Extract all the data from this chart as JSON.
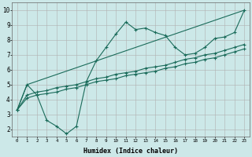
{
  "xlabel": "Humidex (Indice chaleur)",
  "bg_color": "#cce8e8",
  "grid_color": "#aaaaaa",
  "line_color": "#1a6b5a",
  "xlim": [
    -0.5,
    23.5
  ],
  "ylim": [
    1.5,
    10.5
  ],
  "xticks": [
    0,
    1,
    2,
    3,
    4,
    5,
    6,
    7,
    8,
    9,
    10,
    11,
    12,
    13,
    14,
    15,
    16,
    17,
    18,
    19,
    20,
    21,
    22,
    23
  ],
  "yticks": [
    2,
    3,
    4,
    5,
    6,
    7,
    8,
    9,
    10
  ],
  "series1": [
    [
      0,
      3.3
    ],
    [
      1,
      5.0
    ],
    [
      2,
      4.3
    ],
    [
      3,
      2.6
    ],
    [
      4,
      2.2
    ],
    [
      5,
      1.7
    ],
    [
      6,
      2.2
    ],
    [
      7,
      5.2
    ],
    [
      8,
      6.6
    ],
    [
      9,
      7.5
    ],
    [
      10,
      8.4
    ],
    [
      11,
      9.2
    ],
    [
      12,
      8.7
    ],
    [
      13,
      8.8
    ],
    [
      14,
      8.5
    ],
    [
      15,
      8.3
    ],
    [
      16,
      7.5
    ],
    [
      17,
      7.0
    ],
    [
      18,
      7.1
    ],
    [
      19,
      7.5
    ],
    [
      20,
      8.1
    ],
    [
      21,
      8.2
    ],
    [
      22,
      8.5
    ],
    [
      23,
      10.0
    ]
  ],
  "series2": [
    [
      0,
      3.3
    ],
    [
      1,
      5.0
    ],
    [
      23,
      10.0
    ]
  ],
  "series3": [
    [
      0,
      3.3
    ],
    [
      1,
      4.3
    ],
    [
      2,
      4.5
    ],
    [
      3,
      4.6
    ],
    [
      4,
      4.8
    ],
    [
      5,
      4.9
    ],
    [
      6,
      5.0
    ],
    [
      7,
      5.2
    ],
    [
      8,
      5.4
    ],
    [
      9,
      5.5
    ],
    [
      10,
      5.7
    ],
    [
      11,
      5.8
    ],
    [
      12,
      5.9
    ],
    [
      13,
      6.1
    ],
    [
      14,
      6.2
    ],
    [
      15,
      6.3
    ],
    [
      16,
      6.5
    ],
    [
      17,
      6.7
    ],
    [
      18,
      6.8
    ],
    [
      19,
      7.0
    ],
    [
      20,
      7.1
    ],
    [
      21,
      7.3
    ],
    [
      22,
      7.5
    ],
    [
      23,
      7.7
    ]
  ],
  "series4": [
    [
      0,
      3.3
    ],
    [
      1,
      4.1
    ],
    [
      2,
      4.3
    ],
    [
      3,
      4.4
    ],
    [
      4,
      4.5
    ],
    [
      5,
      4.7
    ],
    [
      6,
      4.8
    ],
    [
      7,
      5.0
    ],
    [
      8,
      5.2
    ],
    [
      9,
      5.3
    ],
    [
      10,
      5.4
    ],
    [
      11,
      5.6
    ],
    [
      12,
      5.7
    ],
    [
      13,
      5.8
    ],
    [
      14,
      5.9
    ],
    [
      15,
      6.1
    ],
    [
      16,
      6.2
    ],
    [
      17,
      6.4
    ],
    [
      18,
      6.5
    ],
    [
      19,
      6.7
    ],
    [
      20,
      6.8
    ],
    [
      21,
      7.0
    ],
    [
      22,
      7.2
    ],
    [
      23,
      7.4
    ]
  ]
}
